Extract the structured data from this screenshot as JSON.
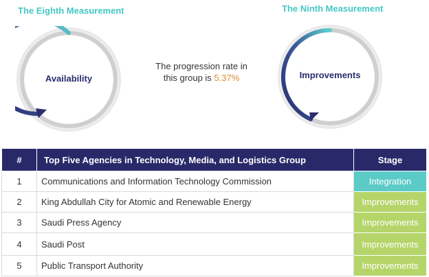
{
  "measurements": {
    "left": {
      "title": "The Eighth Measurement",
      "label": "Availability",
      "progress": 0.4
    },
    "right": {
      "title": "The Ninth Measurement",
      "label": "Improvements",
      "progress": 0.4
    }
  },
  "progress_text": {
    "prefix": "The progression rate in this group is",
    "rate": "5.37%"
  },
  "table": {
    "headers": {
      "num": "#",
      "agency": "Top Five Agencies in Technology, Media, and Logistics Group",
      "stage": "Stage"
    },
    "rows": [
      {
        "num": "1",
        "agency": "Communications and Information Technology Commission",
        "stage": "Integration"
      },
      {
        "num": "2",
        "agency": "King Abdullah City for Atomic and Renewable Energy",
        "stage": "Improvements"
      },
      {
        "num": "3",
        "agency": "Saudi Press Agency",
        "stage": "Improvements"
      },
      {
        "num": "4",
        "agency": "Saudi Post",
        "stage": "Improvements"
      },
      {
        "num": "5",
        "agency": "Public Transport Authority",
        "stage": "Improvements"
      }
    ]
  },
  "colors": {
    "header_bg": "#29296a",
    "integration": "#5ccbc8",
    "improvements": "#b5d56a",
    "title": "#46c7c3",
    "rate": "#d98b2b",
    "arc_start": "#5dd0cd",
    "arc_end": "#2a2d6e"
  }
}
